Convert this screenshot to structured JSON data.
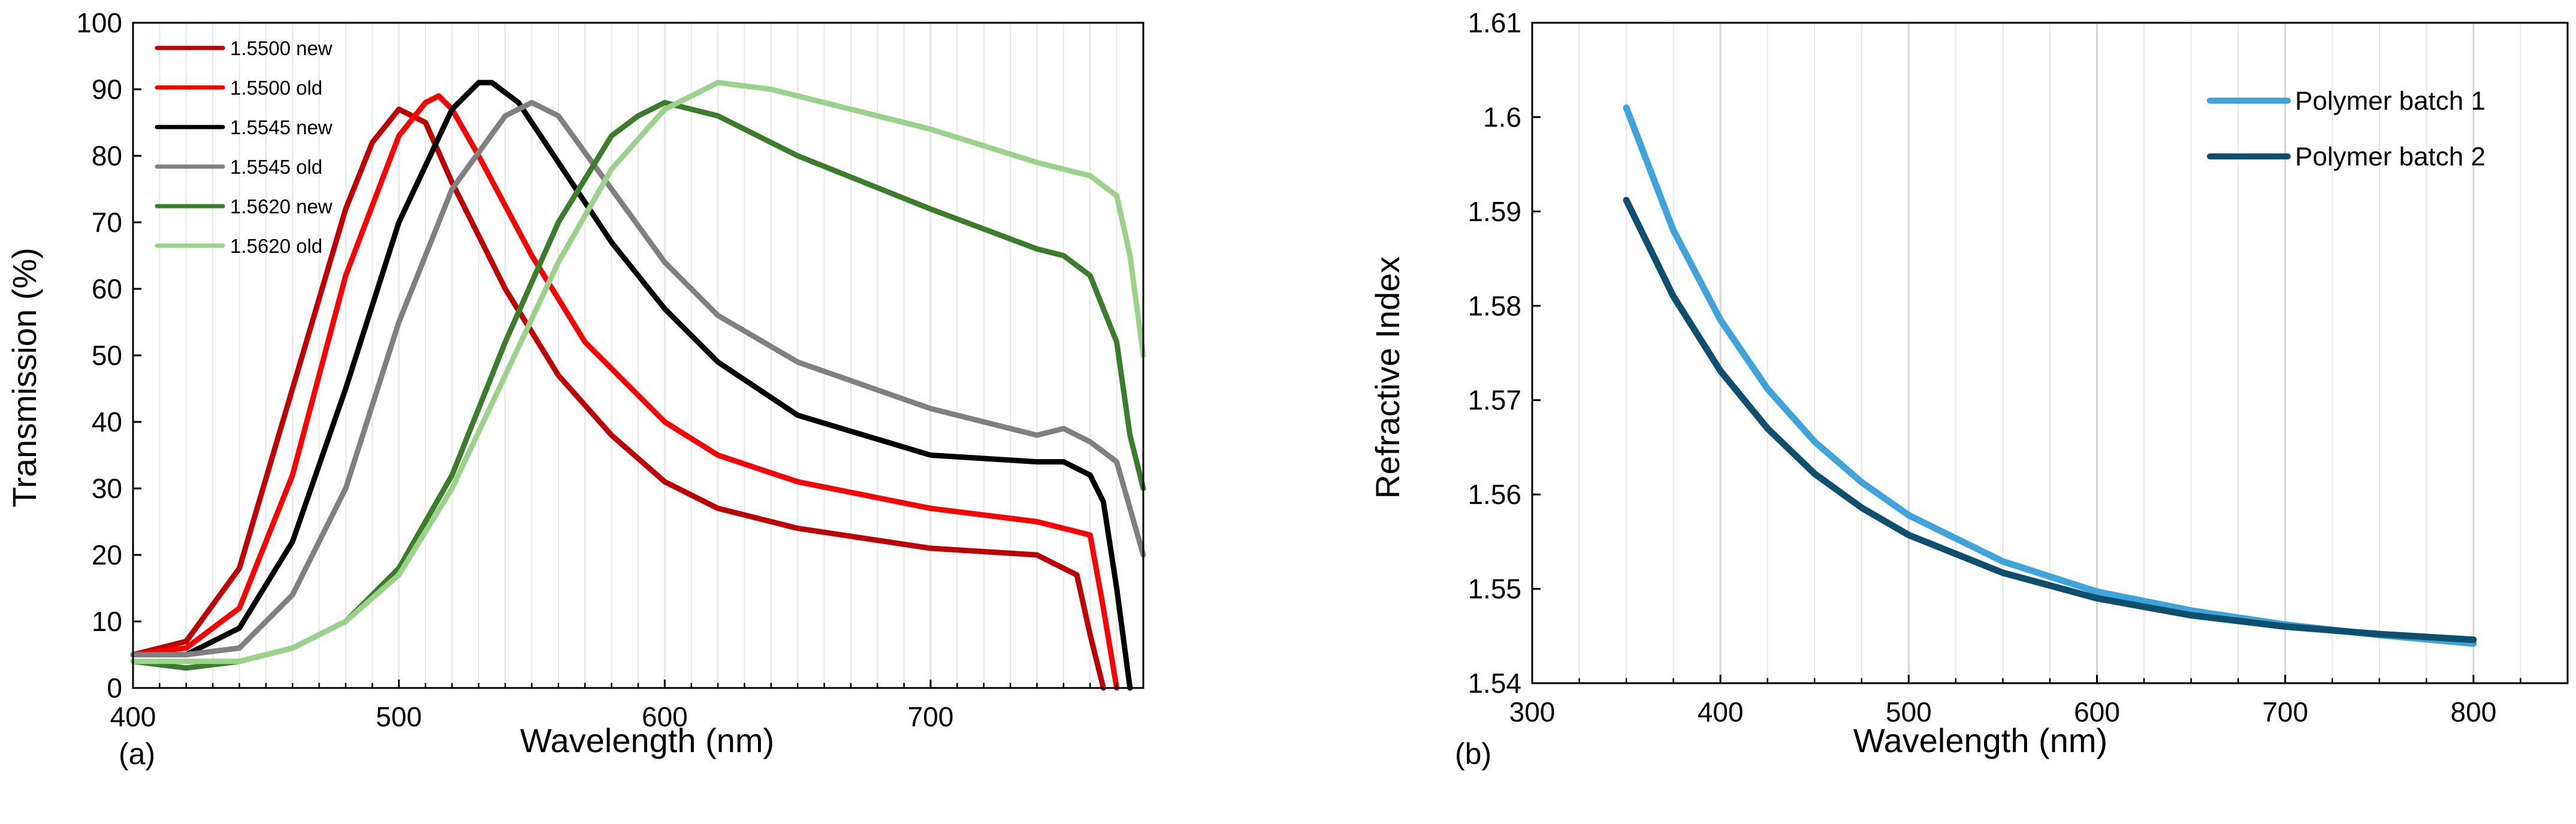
{
  "chart_data": [
    {
      "type": "line",
      "panel_label": "(a)",
      "xlabel": "Wavelength (nm)",
      "ylabel": "Transmission (%)",
      "xlim": [
        400,
        780
      ],
      "ylim": [
        0,
        100
      ],
      "xticks": [
        400,
        500,
        600,
        700
      ],
      "yticks": [
        0,
        10,
        20,
        30,
        40,
        50,
        60,
        70,
        80,
        90,
        100
      ],
      "legend_position": "top-left",
      "series": [
        {
          "name": "1.5500 new",
          "color": "#c00000",
          "x": [
            400,
            420,
            440,
            460,
            480,
            490,
            500,
            510,
            520,
            540,
            560,
            580,
            600,
            620,
            650,
            700,
            740,
            750,
            755,
            760,
            765
          ],
          "y": [
            5,
            7,
            18,
            45,
            72,
            82,
            87,
            85,
            76,
            60,
            47,
            38,
            31,
            27,
            24,
            21,
            20,
            18,
            17,
            8,
            0
          ]
        },
        {
          "name": "1.5500 old",
          "color": "#ff0000",
          "x": [
            400,
            420,
            440,
            460,
            480,
            500,
            510,
            515,
            520,
            530,
            550,
            570,
            600,
            620,
            650,
            700,
            740,
            750,
            760,
            765,
            770
          ],
          "y": [
            5,
            6,
            12,
            32,
            62,
            83,
            88,
            89,
            87,
            80,
            65,
            52,
            40,
            35,
            31,
            27,
            25,
            24,
            23,
            12,
            0
          ]
        },
        {
          "name": "1.5545 new",
          "color": "#000000",
          "x": [
            400,
            420,
            440,
            460,
            480,
            500,
            520,
            530,
            535,
            545,
            560,
            580,
            600,
            620,
            650,
            700,
            740,
            750,
            760,
            765,
            770,
            775
          ],
          "y": [
            5,
            5,
            9,
            22,
            45,
            70,
            87,
            91,
            91,
            88,
            79,
            67,
            57,
            49,
            41,
            35,
            34,
            34,
            32,
            28,
            15,
            0
          ]
        },
        {
          "name": "1.5545 old",
          "color": "#808080",
          "x": [
            400,
            420,
            440,
            460,
            480,
            500,
            520,
            540,
            550,
            560,
            580,
            600,
            620,
            650,
            700,
            740,
            750,
            760,
            770,
            775,
            780
          ],
          "y": [
            5,
            5,
            6,
            14,
            30,
            55,
            75,
            86,
            88,
            86,
            75,
            64,
            56,
            49,
            42,
            38,
            39,
            37,
            34,
            27,
            20
          ]
        },
        {
          "name": "1.5620 new",
          "color": "#3a7d2a",
          "x": [
            400,
            420,
            440,
            460,
            480,
            500,
            520,
            540,
            560,
            580,
            590,
            600,
            620,
            650,
            700,
            740,
            750,
            760,
            770,
            775,
            780
          ],
          "y": [
            4,
            3,
            4,
            6,
            10,
            18,
            32,
            52,
            70,
            83,
            86,
            88,
            86,
            80,
            72,
            66,
            65,
            62,
            52,
            38,
            30
          ]
        },
        {
          "name": "1.5620 old",
          "color": "#9bd28a",
          "x": [
            400,
            420,
            440,
            460,
            480,
            500,
            520,
            540,
            560,
            580,
            600,
            620,
            640,
            660,
            700,
            740,
            750,
            760,
            770,
            775,
            780
          ],
          "y": [
            4,
            4,
            4,
            6,
            10,
            17,
            30,
            47,
            64,
            78,
            87,
            91,
            90,
            88,
            84,
            79,
            78,
            77,
            74,
            65,
            50
          ]
        }
      ]
    },
    {
      "type": "line",
      "panel_label": "(b)",
      "xlabel": "Wavelength (nm)",
      "ylabel": "Refractive Index",
      "xlim": [
        300,
        850
      ],
      "ylim": [
        1.54,
        1.61
      ],
      "xticks": [
        300,
        400,
        500,
        600,
        700,
        800
      ],
      "yticks": [
        "1.54",
        "1.55",
        "1.56",
        "1.57",
        "1.58",
        "1.59",
        "1.6",
        "1.61"
      ],
      "legend_position": "top-right",
      "series": [
        {
          "name": "Polymer batch 1",
          "color": "#3fa4dc",
          "x": [
            350,
            375,
            400,
            425,
            450,
            475,
            500,
            550,
            600,
            650,
            700,
            750,
            800
          ],
          "y": [
            1.601,
            1.588,
            1.5785,
            1.5712,
            1.5656,
            1.5613,
            1.5578,
            1.5529,
            1.5497,
            1.5477,
            1.5462,
            1.5451,
            1.5442
          ]
        },
        {
          "name": "Polymer batch 2",
          "color": "#0d4f6e",
          "x": [
            350,
            375,
            400,
            425,
            450,
            475,
            500,
            550,
            600,
            650,
            700,
            750,
            800
          ],
          "y": [
            1.5912,
            1.581,
            1.5731,
            1.567,
            1.5622,
            1.5586,
            1.5557,
            1.5517,
            1.549,
            1.5472,
            1.546,
            1.5452,
            1.5446
          ]
        }
      ]
    }
  ]
}
